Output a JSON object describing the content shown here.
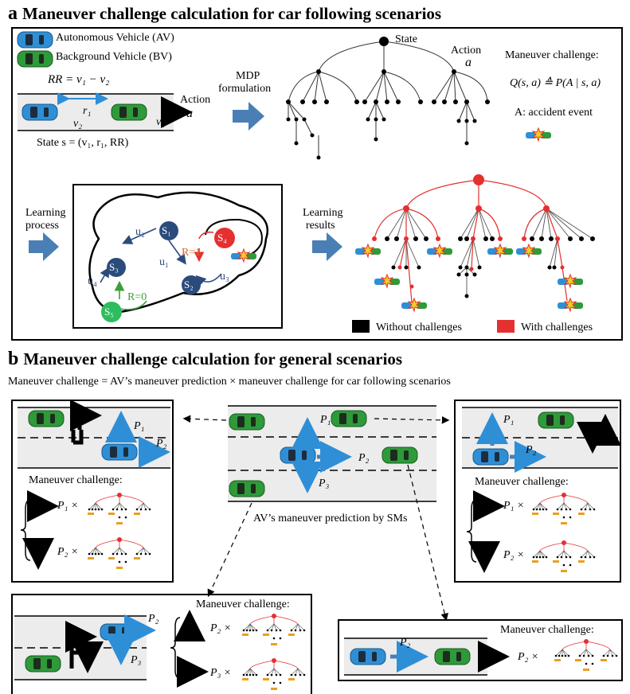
{
  "panel_a": {
    "letter": "a",
    "title": "Maneuver challenge calculation for car following scenarios",
    "legend_av": "Autonomous Vehicle (AV)",
    "legend_bv": "Background Vehicle (BV)",
    "rr_eq": "RR = v₁ − v₂",
    "label_r1": "r₁",
    "label_v1": "v₁",
    "label_v2": "v₂",
    "action_left": "Action",
    "action_left_symbol": "a",
    "state_eq": "State   s = (v₁, r₁, RR)",
    "mdp_label_1": "MDP",
    "mdp_label_2": "formulation",
    "tree_state": "State",
    "tree_action": "Action",
    "tree_action_symbol": "a",
    "mc_title": "Maneuver challenge:",
    "mc_formula": "Q(s, a) ≙ P(A | s, a)",
    "accident_label": "A: accident event",
    "learning_process_1": "Learning",
    "learning_process_2": "process",
    "learning_results_1": "Learning",
    "learning_results_2": "results",
    "graph": {
      "s1": "S₁",
      "s2": "S₂",
      "s3": "S₃",
      "s4": "S₄",
      "s5": "S₅",
      "u1": "u₁",
      "u2": "u₂",
      "u3": "u₃",
      "u4": "u₄",
      "r1": "R=1",
      "r0": "R=0"
    },
    "legend_without": "Without challenges",
    "legend_with": "With challenges"
  },
  "panel_b": {
    "letter": "b",
    "title": "Maneuver challenge calculation for general scenarios",
    "subtitle": "Maneuver challenge = AV’s maneuver prediction  ×  maneuver challenge for car following scenarios",
    "center_caption": "AV’s maneuver prediction by SMs",
    "p1": "P₁",
    "p2": "P₂",
    "p3": "P₃",
    "mc_title": "Maneuver challenge:",
    "p1_times": "P₁ ×",
    "p2_times": "P₂ ×",
    "p3_times": "P₃ ×"
  },
  "colors": {
    "av_blue": "#2f8fd6",
    "bv_green": "#2e9a3a",
    "arrow_blue": "#4a7fb5",
    "challenge_red": "#e53030",
    "node_navy": "#2b4b7c",
    "road_gray": "#ececec"
  }
}
